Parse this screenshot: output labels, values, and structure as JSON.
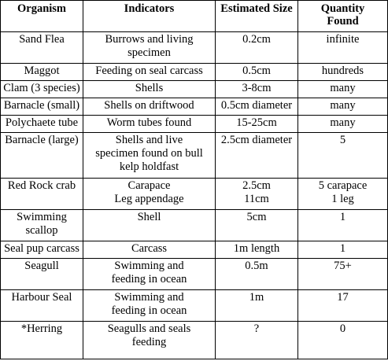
{
  "headers": [
    "Organism",
    "Indicators",
    "Estimated Size",
    "Quantity\nFound"
  ],
  "rows": [
    [
      "Sand Flea",
      "Burrows and living\nspecimen",
      "0.2cm",
      "infinite"
    ],
    [
      "Maggot",
      "Feeding on seal carcass",
      "0.5cm",
      "hundreds"
    ],
    [
      "Clam (3 species)",
      "Shells",
      "3-8cm",
      "many"
    ],
    [
      "Barnacle (small)",
      "Shells on driftwood",
      "0.5cm diameter",
      "many"
    ],
    [
      "Polychaete tube",
      "Worm tubes found",
      "15-25cm",
      "many"
    ],
    [
      "Barnacle (large)",
      "Shells and live\nspecimen found on bull\nkelp holdfast",
      "2.5cm diameter",
      "5"
    ],
    [
      "Red Rock crab",
      "Carapace\nLeg appendage",
      "2.5cm\n11cm",
      "5 carapace\n1 leg"
    ],
    [
      "Swimming\nscallop",
      "Shell",
      "5cm",
      "1"
    ],
    [
      "Seal pup carcass",
      "Carcass",
      "1m length",
      "1"
    ],
    [
      "Seagull",
      "Swimming and\nfeeding in ocean",
      "0.5m",
      "75+"
    ],
    [
      "Harbour Seal",
      "Swimming and\nfeeding in ocean",
      "1m",
      "17"
    ],
    [
      "*Herring",
      "Seagulls and seals\nfeeding",
      "?",
      "0"
    ]
  ]
}
